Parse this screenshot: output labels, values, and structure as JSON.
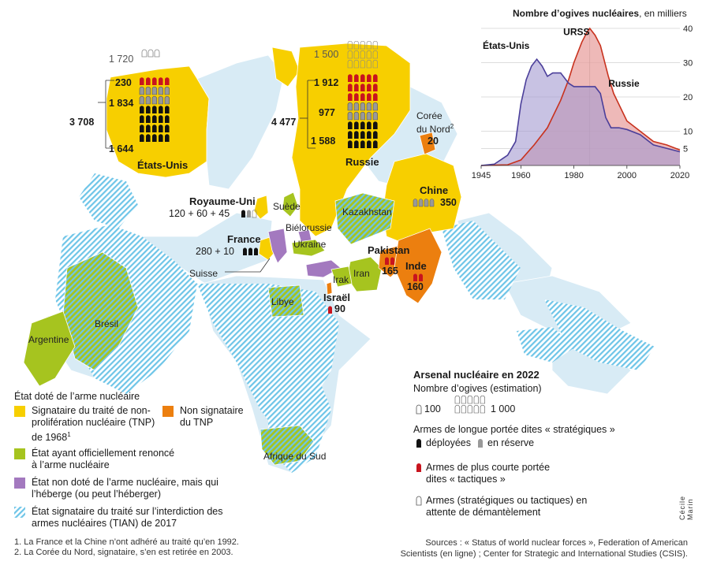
{
  "map": {
    "countries": {
      "etats_unis": "États-Unis",
      "russie": "Russie",
      "coree_nord": "Corée du Nord",
      "coree_nord_sup": "2",
      "chine": "Chine",
      "royaume_uni": "Royaume-Uni",
      "france": "France",
      "suede": "Suède",
      "kazakhstan": "Kazakhstan",
      "bielorussie": "Biélorussie",
      "ukraine": "Ukraine",
      "suisse": "Suisse",
      "pakistan": "Pakistan",
      "inde": "Inde",
      "iran": "Iran",
      "irak": "Irak",
      "israel": "Israël",
      "libye": "Libye",
      "bresil": "Brésil",
      "argentine": "Argentine",
      "afrique_du_sud": "Afrique du Sud"
    },
    "numbers": {
      "us_dismantle": "1 720",
      "us_tactical": "230",
      "us_reserve": "1 834",
      "us_total": "3 708",
      "us_deployed": "1 644",
      "ru_dismantle": "1 500",
      "ru_tactical": "1 912",
      "ru_reserve": "977",
      "ru_total": "4 477",
      "ru_deployed": "1 588",
      "nk": "20",
      "cn": "350",
      "uk": "120 + 60 + 45",
      "fr": "280 + 10",
      "pk": "165",
      "in": "160",
      "il": "90"
    }
  },
  "chart": {
    "title_bold": "Nombre d’ogives nucléaires",
    "title_rest": ", en milliers"
  },
  "chart_data": {
    "type": "area",
    "title": "Nombre d’ogives nucléaires, en milliers",
    "xlim": [
      1945,
      2020
    ],
    "ylim": [
      0,
      40
    ],
    "xticks": [
      1945,
      1960,
      1980,
      2000,
      2020
    ],
    "yticks": [
      5,
      10,
      20,
      30,
      40
    ],
    "series": [
      {
        "name": "États-Unis",
        "color": "#4b3f9a",
        "x": [
          1945,
          1950,
          1955,
          1958,
          1960,
          1962,
          1964,
          1966,
          1968,
          1970,
          1972,
          1975,
          1978,
          1980,
          1983,
          1986,
          1988,
          1990,
          1992,
          1994,
          1997,
          2000,
          2005,
          2010,
          2015,
          2020
        ],
        "y": [
          0,
          0.4,
          3,
          7,
          18,
          25,
          29,
          31,
          29,
          26,
          27,
          27,
          24,
          23,
          23,
          23,
          23,
          21,
          14,
          11,
          11,
          10.5,
          9,
          6,
          5,
          4
        ]
      },
      {
        "name": "URSS",
        "color": "#c8321e",
        "x": [
          1945,
          1950,
          1955,
          1960,
          1965,
          1970,
          1975,
          1978,
          1980,
          1983,
          1985,
          1986,
          1988,
          1990,
          1991
        ],
        "y": [
          0,
          0.1,
          0.2,
          1.6,
          6,
          11,
          19,
          25,
          30,
          36,
          39,
          40,
          38,
          35,
          32
        ]
      },
      {
        "name": "Russie",
        "color": "#c8321e",
        "x": [
          1991,
          1993,
          1995,
          2000,
          2005,
          2010,
          2015,
          2020
        ],
        "y": [
          32,
          26,
          21,
          13,
          10,
          7,
          6,
          4.5
        ]
      }
    ]
  },
  "legend_left": {
    "header": "État doté de l’arme nucléaire",
    "tnp": "Signataire du traité de non-prolifération nucléaire (TNP) de 1968",
    "tnp_sup": "1",
    "non_signataire": "Non signataire du TNP",
    "renonce": "État ayant officiellement renoncé à l’arme nucléaire",
    "heberge": "État non doté de l’arme nucléaire, mais qui l’héberge (ou peut l’héberger)",
    "tian": "État signataire du traité sur l’interdiction des armes nucléaires (TIAN) de 2017",
    "colors": {
      "tnp": "#f7cf00",
      "non_signataire": "#ec7f0f",
      "renonce": "#a6c41f",
      "heberge": "#a379bf",
      "tian": "#6ec5e8"
    }
  },
  "legend_right": {
    "title": "Arsenal nucléaire en 2022",
    "subtitle": "Nombre d’ogives (estimation)",
    "scale_100": "100",
    "scale_1000": "1 000",
    "strategic": "Armes de longue portée dites « stratégiques »",
    "deployed": "déployées",
    "reserve": "en réserve",
    "tactical": "Armes de plus courte portée dites « tactiques »",
    "dismantle": "Armes (stratégiques ou tactiques) en attente de démantèlement"
  },
  "notes": {
    "n1": "1. La France et la Chine n’ont adhéré au traité qu’en 1992.",
    "n2": "2. La Corée du Nord, signataire, s’en est retirée en 2003."
  },
  "sources": {
    "line1": "Sources : « Status of world nuclear forces », Federation of American",
    "line2": "Scientists (en ligne) ; Center for Strategic and International Studies (CSIS)."
  },
  "credit": "Cécile Marin"
}
